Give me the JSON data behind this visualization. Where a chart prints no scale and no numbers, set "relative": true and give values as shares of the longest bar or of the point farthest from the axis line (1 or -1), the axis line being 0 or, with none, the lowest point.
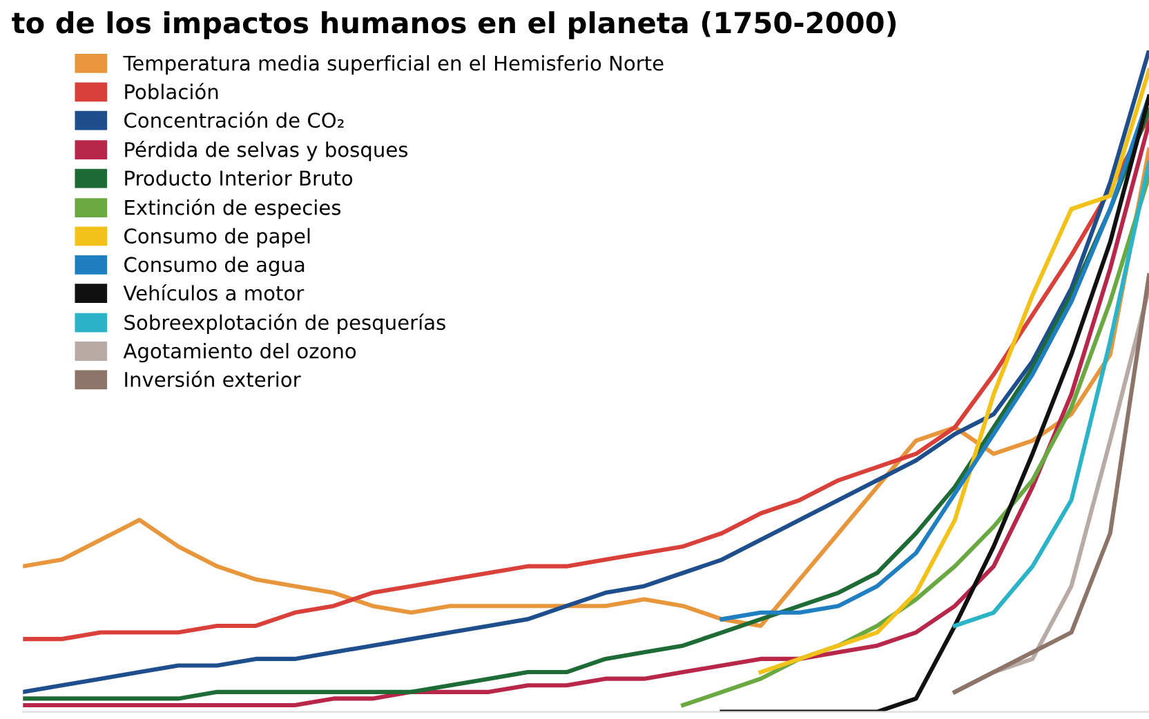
{
  "chart_data": {
    "type": "line",
    "relative": true,
    "title": "to de los impactos humanos en el planeta (1750-2000)",
    "legend": "top left",
    "marker": "none",
    "line_style": "solid",
    "categories": [
      null,
      null,
      null,
      null,
      null,
      null,
      null,
      null,
      null,
      null,
      null,
      null,
      null,
      null,
      null,
      null,
      null,
      null,
      null,
      null,
      null,
      null,
      null,
      null,
      null,
      null,
      null,
      null,
      null,
      null
    ],
    "series": [
      {
        "name": "Temperatura media superficial en el Hemisferio Norte",
        "color": "#e8963c",
        "values": [
          0.22,
          0.23,
          0.26,
          0.29,
          0.25,
          0.22,
          0.2,
          0.19,
          0.18,
          0.16,
          0.15,
          0.16,
          0.16,
          0.16,
          0.16,
          0.16,
          0.17,
          0.16,
          0.14,
          0.13,
          0.2,
          0.27,
          0.34,
          0.41,
          0.43,
          0.39,
          0.41,
          0.45,
          0.54,
          0.85
        ]
      },
      {
        "name": "Población",
        "color": "#d9403a",
        "values": [
          0.11,
          0.11,
          0.12,
          0.12,
          0.12,
          0.13,
          0.13,
          0.15,
          0.16,
          0.18,
          0.19,
          0.2,
          0.21,
          0.22,
          0.22,
          0.23,
          0.24,
          0.25,
          0.27,
          0.3,
          0.32,
          0.35,
          0.37,
          0.39,
          0.43,
          0.51,
          0.6,
          0.69,
          0.79,
          0.9
        ]
      },
      {
        "name": "Concentración de CO₂",
        "color": "#1f4e8c",
        "values": [
          0.03,
          0.04,
          0.05,
          0.06,
          0.07,
          0.07,
          0.08,
          0.08,
          0.09,
          0.1,
          0.11,
          0.12,
          0.13,
          0.14,
          0.16,
          0.18,
          0.19,
          0.21,
          0.23,
          0.26,
          0.29,
          0.32,
          0.35,
          0.38,
          0.42,
          0.45,
          0.53,
          0.64,
          0.8,
          1
        ]
      },
      {
        "name": "Pérdida de selvas y bosques",
        "color": "#b8274a",
        "values": [
          0.01,
          0.01,
          0.01,
          0.01,
          0.01,
          0.01,
          0.01,
          0.01,
          0.02,
          0.02,
          0.03,
          0.03,
          0.03,
          0.04,
          0.04,
          0.05,
          0.05,
          0.06,
          0.07,
          0.08,
          0.08,
          0.09,
          0.1,
          0.12,
          0.16,
          0.22,
          0.34,
          0.48,
          0.67,
          0.89
        ]
      },
      {
        "name": "Producto Interior Bruto",
        "color": "#1e6b35",
        "values": [
          0.02,
          0.02,
          0.02,
          0.02,
          0.02,
          0.03,
          0.03,
          0.03,
          0.03,
          0.03,
          0.03,
          0.04,
          0.05,
          0.06,
          0.06,
          0.08,
          0.09,
          0.1,
          0.12,
          0.14,
          0.16,
          0.18,
          0.21,
          0.27,
          0.34,
          0.43,
          0.52,
          0.63,
          0.76,
          0.91
        ]
      },
      {
        "name": "Extinción de especies",
        "color": "#6aa842",
        "values": [
          null,
          null,
          null,
          null,
          null,
          null,
          null,
          null,
          null,
          null,
          null,
          null,
          null,
          null,
          null,
          null,
          null,
          0.01,
          0.03,
          0.05,
          0.08,
          0.1,
          0.13,
          0.17,
          0.22,
          0.28,
          0.35,
          0.46,
          0.62,
          0.81
        ]
      },
      {
        "name": "Consumo de papel",
        "color": "#f2c21b",
        "values": [
          null,
          null,
          null,
          null,
          null,
          null,
          null,
          null,
          null,
          null,
          null,
          null,
          null,
          null,
          null,
          null,
          null,
          null,
          null,
          0.06,
          0.08,
          0.1,
          0.12,
          0.18,
          0.29,
          0.48,
          0.63,
          0.76,
          0.78,
          0.97
        ]
      },
      {
        "name": "Consumo de agua",
        "color": "#1f7fc0",
        "values": [
          null,
          null,
          null,
          null,
          null,
          null,
          null,
          null,
          null,
          null,
          null,
          null,
          null,
          null,
          null,
          null,
          null,
          null,
          0.14,
          0.15,
          0.15,
          0.16,
          0.19,
          0.24,
          0.33,
          0.42,
          0.51,
          0.62,
          0.76,
          0.93
        ]
      },
      {
        "name": "Vehículos a motor",
        "color": "#111111",
        "values": [
          null,
          null,
          null,
          null,
          null,
          null,
          null,
          null,
          null,
          null,
          null,
          null,
          null,
          null,
          null,
          null,
          null,
          null,
          0,
          0,
          0,
          0,
          0,
          0.02,
          0.13,
          0.25,
          0.39,
          0.54,
          0.71,
          0.93
        ]
      },
      {
        "name": "Sobreexplotación de pesquerías",
        "color": "#2bb3c8",
        "values": [
          null,
          null,
          null,
          null,
          null,
          null,
          null,
          null,
          null,
          null,
          null,
          null,
          null,
          null,
          null,
          null,
          null,
          null,
          null,
          null,
          null,
          null,
          null,
          null,
          0.13,
          0.15,
          0.22,
          0.32,
          0.56,
          0.83
        ]
      },
      {
        "name": "Agotamiento del ozono",
        "color": "#b8aaa4",
        "values": [
          null,
          null,
          null,
          null,
          null,
          null,
          null,
          null,
          null,
          null,
          null,
          null,
          null,
          null,
          null,
          null,
          null,
          null,
          null,
          null,
          null,
          null,
          null,
          null,
          0.03,
          0.06,
          0.08,
          0.19,
          0.41,
          0.64
        ]
      },
      {
        "name": "Inversión exterior",
        "color": "#8c7468",
        "values": [
          null,
          null,
          null,
          null,
          null,
          null,
          null,
          null,
          null,
          null,
          null,
          null,
          null,
          null,
          null,
          null,
          null,
          null,
          null,
          null,
          null,
          null,
          null,
          null,
          0.03,
          0.06,
          0.09,
          0.12,
          0.27,
          0.66
        ]
      }
    ]
  }
}
